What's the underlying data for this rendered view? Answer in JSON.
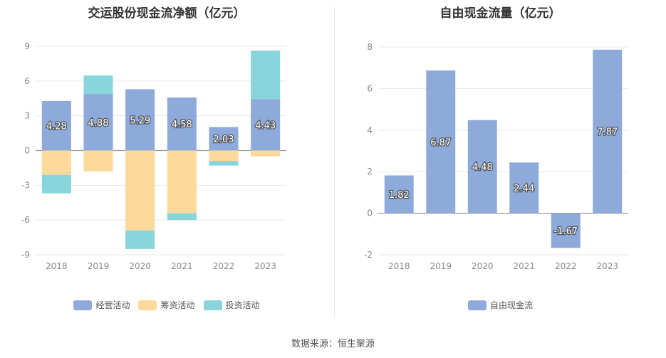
{
  "chart_data": [
    {
      "type": "bar",
      "stacked": true,
      "title": "交运股份现金流净额（亿元）",
      "categories": [
        "2018",
        "2019",
        "2020",
        "2021",
        "2022",
        "2023"
      ],
      "ylim": [
        -9,
        9
      ],
      "yticks": [
        -9,
        -6,
        -3,
        0,
        3,
        6,
        9
      ],
      "grid": true,
      "legend_position": "bottom",
      "series": [
        {
          "name": "经营活动",
          "color": "#8eaadb",
          "values": [
            4.28,
            4.88,
            5.29,
            4.58,
            2.03,
            4.43
          ]
        },
        {
          "name": "筹资活动",
          "color": "#fdd99b",
          "values": [
            -2.1,
            -1.8,
            -6.9,
            -5.4,
            -0.9,
            -0.5
          ]
        },
        {
          "name": "投资活动",
          "color": "#88d5dc",
          "values": [
            -1.6,
            1.6,
            -1.6,
            -0.6,
            -0.4,
            4.2
          ]
        }
      ],
      "data_labels": [
        "4.28",
        "4.88",
        "5.29",
        "4.58",
        "2.03",
        "4.43"
      ]
    },
    {
      "type": "bar",
      "title": "自由现金流量（亿元）",
      "categories": [
        "2018",
        "2019",
        "2020",
        "2021",
        "2022",
        "2023"
      ],
      "ylim": [
        -2,
        8
      ],
      "yticks": [
        -2,
        0,
        2,
        4,
        6,
        8
      ],
      "grid": true,
      "legend_position": "bottom",
      "series": [
        {
          "name": "自由现金流",
          "color": "#8eaadb",
          "values": [
            1.82,
            6.87,
            4.48,
            2.44,
            -1.67,
            7.87
          ]
        }
      ],
      "data_labels": [
        "1.82",
        "6.87",
        "4.48",
        "2.44",
        "-1.67",
        "7.87"
      ]
    }
  ],
  "source_text": "数据来源：恒生聚源"
}
